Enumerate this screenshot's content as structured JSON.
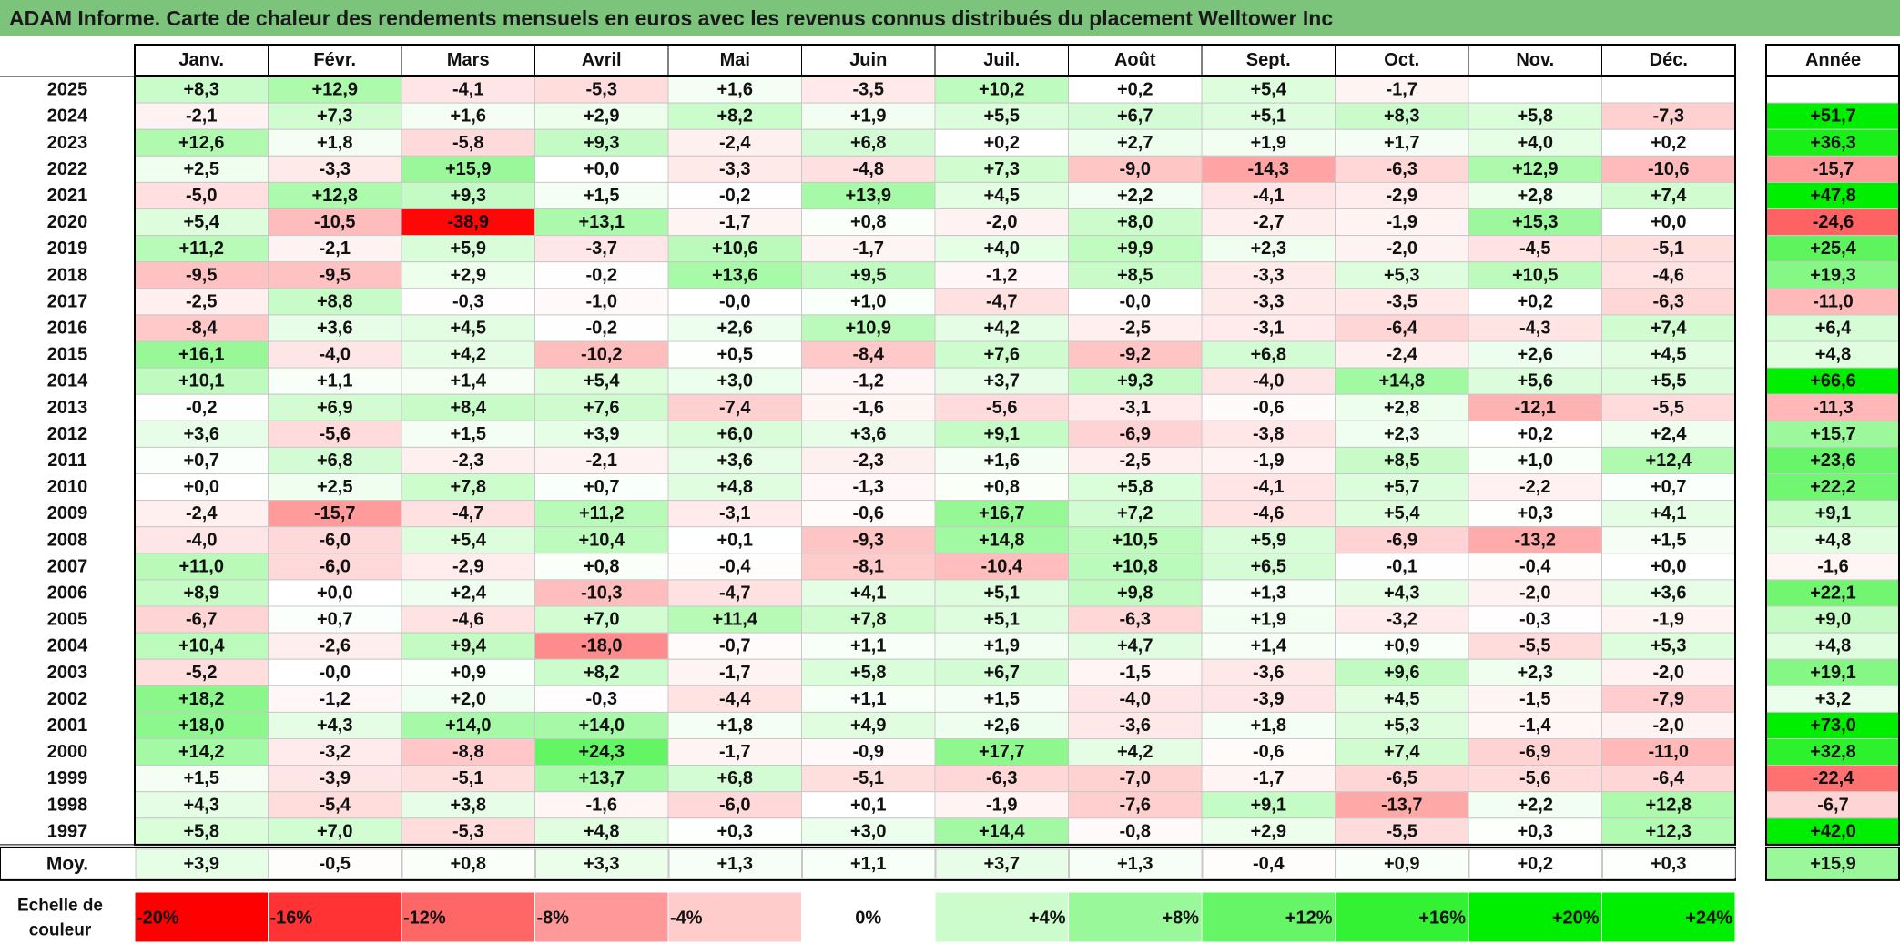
{
  "title": "ADAM Informe. Carte de chaleur des rendements mensuels en euros avec les revenus connus distribués du placement Welltower Inc",
  "chart_data": {
    "type": "heatmap",
    "months": [
      "Janv.",
      "Févr.",
      "Mars",
      "Avril",
      "Mai",
      "Juin",
      "Juil.",
      "Août",
      "Sept.",
      "Oct.",
      "Nov.",
      "Déc."
    ],
    "year_header": "Année",
    "rows": [
      {
        "year": "2025",
        "values": [
          "+8,3",
          "+12,9",
          "-4,1",
          "-5,3",
          "+1,6",
          "-3,5",
          "+10,2",
          "+0,2",
          "+5,4",
          "-1,7",
          "",
          ""
        ],
        "annual": ""
      },
      {
        "year": "2024",
        "values": [
          "-2,1",
          "+7,3",
          "+1,6",
          "+2,9",
          "+8,2",
          "+1,9",
          "+5,5",
          "+6,7",
          "+5,1",
          "+8,3",
          "+5,8",
          "-7,3"
        ],
        "annual": "+51,7"
      },
      {
        "year": "2023",
        "values": [
          "+12,6",
          "+1,8",
          "-5,8",
          "+9,3",
          "-2,4",
          "+6,8",
          "+0,2",
          "+2,7",
          "+1,9",
          "+1,7",
          "+4,0",
          "+0,2"
        ],
        "annual": "+36,3"
      },
      {
        "year": "2022",
        "values": [
          "+2,5",
          "-3,3",
          "+15,9",
          "+0,0",
          "-3,3",
          "-4,8",
          "+7,3",
          "-9,0",
          "-14,3",
          "-6,3",
          "+12,9",
          "-10,6"
        ],
        "annual": "-15,7"
      },
      {
        "year": "2021",
        "values": [
          "-5,0",
          "+12,8",
          "+9,3",
          "+1,5",
          "-0,2",
          "+13,9",
          "+4,5",
          "+2,2",
          "-4,1",
          "-2,9",
          "+2,8",
          "+7,4"
        ],
        "annual": "+47,8"
      },
      {
        "year": "2020",
        "values": [
          "+5,4",
          "-10,5",
          "-38,9",
          "+13,1",
          "-1,7",
          "+0,8",
          "-2,0",
          "+8,0",
          "-2,7",
          "-1,9",
          "+15,3",
          "+0,0"
        ],
        "annual": "-24,6"
      },
      {
        "year": "2019",
        "values": [
          "+11,2",
          "-2,1",
          "+5,9",
          "-3,7",
          "+10,6",
          "-1,7",
          "+4,0",
          "+9,9",
          "+2,3",
          "-2,0",
          "-4,5",
          "-5,1"
        ],
        "annual": "+25,4"
      },
      {
        "year": "2018",
        "values": [
          "-9,5",
          "-9,5",
          "+2,9",
          "-0,2",
          "+13,6",
          "+9,5",
          "-1,2",
          "+8,5",
          "-3,3",
          "+5,3",
          "+10,5",
          "-4,6"
        ],
        "annual": "+19,3"
      },
      {
        "year": "2017",
        "values": [
          "-2,5",
          "+8,8",
          "-0,3",
          "-1,0",
          "-0,0",
          "+1,0",
          "-4,7",
          "-0,0",
          "-3,3",
          "-3,5",
          "+0,2",
          "-6,3"
        ],
        "annual": "-11,0"
      },
      {
        "year": "2016",
        "values": [
          "-8,4",
          "+3,6",
          "+4,5",
          "-0,2",
          "+2,6",
          "+10,9",
          "+4,2",
          "-2,5",
          "-3,1",
          "-6,4",
          "-4,3",
          "+7,4"
        ],
        "annual": "+6,4"
      },
      {
        "year": "2015",
        "values": [
          "+16,1",
          "-4,0",
          "+4,2",
          "-10,2",
          "+0,5",
          "-8,4",
          "+7,6",
          "-9,2",
          "+6,8",
          "-2,4",
          "+2,6",
          "+4,5"
        ],
        "annual": "+4,8"
      },
      {
        "year": "2014",
        "values": [
          "+10,1",
          "+1,1",
          "+1,4",
          "+5,4",
          "+3,0",
          "-1,2",
          "+3,7",
          "+9,3",
          "-4,0",
          "+14,8",
          "+5,6",
          "+5,5"
        ],
        "annual": "+66,6"
      },
      {
        "year": "2013",
        "values": [
          "-0,2",
          "+6,9",
          "+8,4",
          "+7,6",
          "-7,4",
          "-1,6",
          "-5,6",
          "-3,1",
          "-0,6",
          "+2,8",
          "-12,1",
          "-5,5"
        ],
        "annual": "-11,3"
      },
      {
        "year": "2012",
        "values": [
          "+3,6",
          "-5,6",
          "+1,5",
          "+3,9",
          "+6,0",
          "+3,6",
          "+9,1",
          "-6,9",
          "-3,8",
          "+2,3",
          "+0,2",
          "+2,4"
        ],
        "annual": "+15,7"
      },
      {
        "year": "2011",
        "values": [
          "+0,7",
          "+6,8",
          "-2,3",
          "-2,1",
          "+3,6",
          "-2,3",
          "+1,6",
          "-2,5",
          "-1,9",
          "+8,5",
          "+1,0",
          "+12,4"
        ],
        "annual": "+23,6"
      },
      {
        "year": "2010",
        "values": [
          "+0,0",
          "+2,5",
          "+7,8",
          "+0,7",
          "+4,8",
          "-1,3",
          "+0,8",
          "+5,8",
          "-4,1",
          "+5,7",
          "-2,2",
          "+0,7"
        ],
        "annual": "+22,2"
      },
      {
        "year": "2009",
        "values": [
          "-2,4",
          "-15,7",
          "-4,7",
          "+11,2",
          "-3,1",
          "-0,6",
          "+16,7",
          "+7,2",
          "-4,6",
          "+5,4",
          "+0,3",
          "+4,1"
        ],
        "annual": "+9,1"
      },
      {
        "year": "2008",
        "values": [
          "-4,0",
          "-6,0",
          "+5,4",
          "+10,4",
          "+0,1",
          "-9,3",
          "+14,8",
          "+10,5",
          "+5,9",
          "-6,9",
          "-13,2",
          "+1,5"
        ],
        "annual": "+4,8"
      },
      {
        "year": "2007",
        "values": [
          "+11,0",
          "-6,0",
          "-2,9",
          "+0,8",
          "-0,4",
          "-8,1",
          "-10,4",
          "+10,8",
          "+6,5",
          "-0,1",
          "-0,4",
          "+0,0"
        ],
        "annual": "-1,6"
      },
      {
        "year": "2006",
        "values": [
          "+8,9",
          "+0,0",
          "+2,4",
          "-10,3",
          "-4,7",
          "+4,1",
          "+5,1",
          "+9,8",
          "+1,3",
          "+4,3",
          "-2,0",
          "+3,6"
        ],
        "annual": "+22,1"
      },
      {
        "year": "2005",
        "values": [
          "-6,7",
          "+0,7",
          "-4,6",
          "+7,0",
          "+11,4",
          "+7,8",
          "+5,1",
          "-6,3",
          "+1,9",
          "-3,2",
          "-0,3",
          "-1,9"
        ],
        "annual": "+9,0"
      },
      {
        "year": "2004",
        "values": [
          "+10,4",
          "-2,6",
          "+9,4",
          "-18,0",
          "-0,7",
          "+1,1",
          "+1,9",
          "+4,7",
          "+1,4",
          "+0,9",
          "-5,5",
          "+5,3"
        ],
        "annual": "+4,8"
      },
      {
        "year": "2003",
        "values": [
          "-5,2",
          "-0,0",
          "+0,9",
          "+8,2",
          "-1,7",
          "+5,8",
          "+6,7",
          "-1,5",
          "-3,6",
          "+9,6",
          "+2,3",
          "-2,0"
        ],
        "annual": "+19,1"
      },
      {
        "year": "2002",
        "values": [
          "+18,2",
          "-1,2",
          "+2,0",
          "-0,3",
          "-4,4",
          "+1,1",
          "+1,5",
          "-4,0",
          "-3,9",
          "+4,5",
          "-1,5",
          "-7,9"
        ],
        "annual": "+3,2"
      },
      {
        "year": "2001",
        "values": [
          "+18,0",
          "+4,3",
          "+14,0",
          "+14,0",
          "+1,8",
          "+4,9",
          "+2,6",
          "-3,6",
          "+1,8",
          "+5,3",
          "-1,4",
          "-2,0"
        ],
        "annual": "+73,0"
      },
      {
        "year": "2000",
        "values": [
          "+14,2",
          "-3,2",
          "-8,8",
          "+24,3",
          "-1,7",
          "-0,9",
          "+17,7",
          "+4,2",
          "-0,6",
          "+7,4",
          "-6,9",
          "-11,0"
        ],
        "annual": "+32,8"
      },
      {
        "year": "1999",
        "values": [
          "+1,5",
          "-3,9",
          "-5,1",
          "+13,7",
          "+6,8",
          "-5,1",
          "-6,3",
          "-7,0",
          "-1,7",
          "-6,5",
          "-5,6",
          "-6,4"
        ],
        "annual": "-22,4"
      },
      {
        "year": "1998",
        "values": [
          "+4,3",
          "-5,4",
          "+3,8",
          "-1,6",
          "-6,0",
          "+0,1",
          "-1,9",
          "-7,6",
          "+9,1",
          "-13,7",
          "+2,2",
          "+12,8"
        ],
        "annual": "-6,7"
      },
      {
        "year": "1997",
        "values": [
          "+5,8",
          "+7,0",
          "-5,3",
          "+4,8",
          "+0,3",
          "+3,0",
          "+14,4",
          "-0,8",
          "+2,9",
          "-5,5",
          "+0,3",
          "+12,3"
        ],
        "annual": "+42,0"
      }
    ],
    "average": {
      "label": "Moy.",
      "values": [
        "+3,9",
        "-0,5",
        "+0,8",
        "+3,3",
        "+1,3",
        "+1,1",
        "+3,7",
        "+1,3",
        "-0,4",
        "+0,9",
        "+0,2",
        "+0,3"
      ],
      "annual": "+15,9"
    },
    "scale": {
      "label_line1": "Echelle de",
      "label_line2": "couleur",
      "items": [
        {
          "label": "-20%",
          "value": -20
        },
        {
          "label": "-16%",
          "value": -16
        },
        {
          "label": "-12%",
          "value": -12
        },
        {
          "label": "-8%",
          "value": -8
        },
        {
          "label": "-4%",
          "value": -4
        },
        {
          "label": "0%",
          "value": 0
        },
        {
          "label": "+4%",
          "value": 4
        },
        {
          "label": "+8%",
          "value": 8
        },
        {
          "label": "+12%",
          "value": 12
        },
        {
          "label": "+16%",
          "value": 16
        },
        {
          "label": "+20%",
          "value": 20
        },
        {
          "label": "+24%",
          "value": 24
        }
      ]
    },
    "colors": {
      "negative": "#ff0000",
      "neutral": "#ffffff",
      "positive": "#00ee00",
      "title_bg": "#7cc47b"
    }
  }
}
